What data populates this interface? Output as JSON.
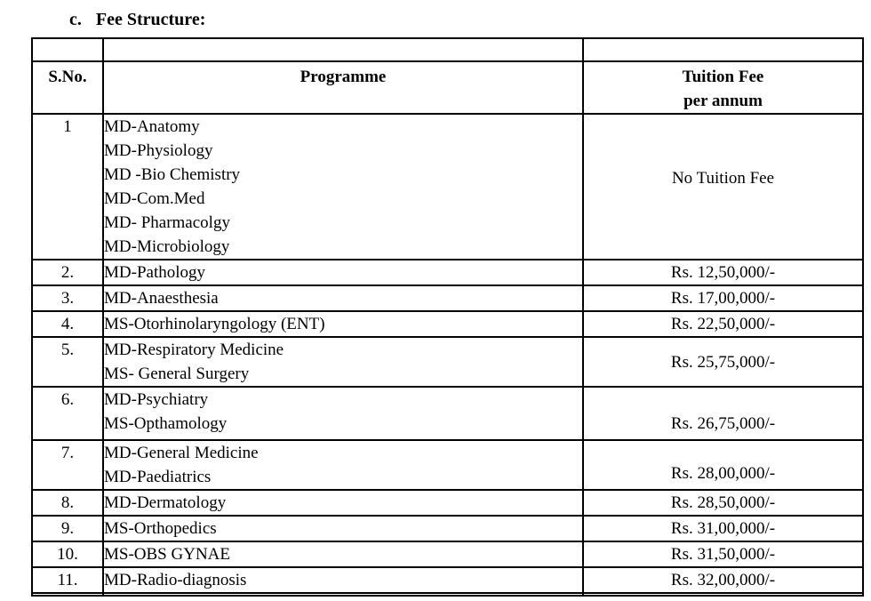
{
  "page": {
    "title_marker": "c.",
    "title_text": "Fee Structure:",
    "text_color": "#000000",
    "background_color": "#ffffff"
  },
  "table": {
    "header": {
      "sno": "S.No.",
      "programme": "Programme",
      "fee_line1": "Tuition Fee",
      "fee_line2": "per annum"
    },
    "rows": [
      {
        "sno": "1",
        "programmes": [
          "MD-Anatomy",
          "MD-Physiology",
          "MD -Bio Chemistry",
          "MD-Com.Med",
          "MD- Pharmacolgy",
          "MD-Microbiology"
        ],
        "fee": "No Tuition Fee",
        "fee_valign": "top"
      },
      {
        "sno": "2.",
        "programmes": [
          "MD-Pathology"
        ],
        "fee": "Rs. 12,50,000/-",
        "fee_valign": "middle"
      },
      {
        "sno": "3.",
        "programmes": [
          "MD-Anaesthesia"
        ],
        "fee": "Rs. 17,00,000/-",
        "fee_valign": "middle"
      },
      {
        "sno": "4.",
        "programmes": [
          "MS-Otorhinolaryngology (ENT)"
        ],
        "fee": "Rs. 22,50,000/-",
        "fee_valign": "middle"
      },
      {
        "sno": "5.",
        "programmes": [
          "MD-Respiratory Medicine",
          "MS- General Surgery"
        ],
        "fee": "Rs. 25,75,000/-",
        "fee_valign": "middle"
      },
      {
        "sno": "6.",
        "programmes": [
          "MD-Psychiatry",
          "MS-Opthamology"
        ],
        "fee": "Rs. 26,75,000/-",
        "fee_valign": "bottom"
      },
      {
        "sno": "7.",
        "programmes": [
          "MD-General Medicine",
          "MD-Paediatrics"
        ],
        "fee": "Rs. 28,00,000/-",
        "fee_valign": "bottom"
      },
      {
        "sno": "8.",
        "programmes": [
          "MD-Dermatology"
        ],
        "fee": "Rs. 28,50,000/-",
        "fee_valign": "middle"
      },
      {
        "sno": "9.",
        "programmes": [
          "MS-Orthopedics"
        ],
        "fee": "Rs. 31,00,000/-",
        "fee_valign": "middle"
      },
      {
        "sno": "10.",
        "programmes": [
          "MS-OBS GYNAE"
        ],
        "fee": "Rs. 31,50,000/-",
        "fee_valign": "middle"
      },
      {
        "sno": "11.",
        "programmes": [
          "MD-Radio-diagnosis"
        ],
        "fee": "Rs. 32,00,000/-",
        "fee_valign": "middle"
      }
    ]
  }
}
